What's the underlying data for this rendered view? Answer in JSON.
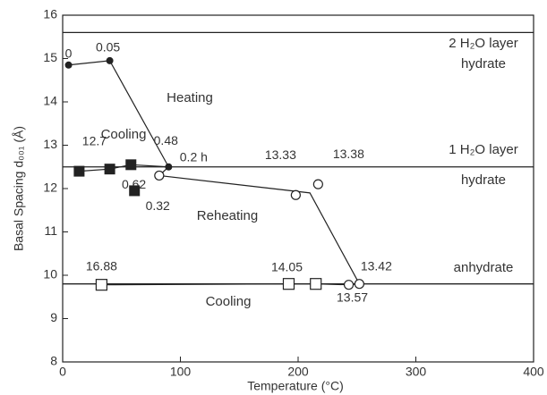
{
  "chart_data": {
    "type": "scatter",
    "xlabel": "Temperature (°C)",
    "ylabel": "Basal Spacing d₀₀₁ (Å)",
    "xlim": [
      0,
      400
    ],
    "xticks": [
      0,
      100,
      200,
      300,
      400
    ],
    "ylim": [
      8,
      16
    ],
    "yticks": [
      8,
      9,
      10,
      11,
      12,
      13,
      14,
      15,
      16
    ],
    "hlines": [
      15.6,
      12.5,
      9.8
    ],
    "color": "#222222",
    "series": [
      {
        "marker": "filled-circle",
        "x": [
          5,
          40,
          90
        ],
        "values": [
          14.85,
          14.95,
          12.5
        ],
        "labels": [
          "0",
          "0.05",
          "0.2 h"
        ]
      },
      {
        "marker": "filled-square",
        "x": [
          14,
          40,
          58,
          61
        ],
        "values": [
          12.4,
          12.45,
          12.55,
          11.95
        ],
        "labels": [
          "12.7",
          "0.62",
          "0.48",
          "0.32"
        ]
      },
      {
        "marker": "open-circle",
        "x": [
          82,
          198,
          217,
          243,
          252
        ],
        "values": [
          12.3,
          11.85,
          12.1,
          9.78,
          9.8
        ],
        "labels": [
          null,
          "13.33",
          "13.38",
          "13.57",
          "13.42"
        ]
      },
      {
        "marker": "open-square",
        "x": [
          33,
          192,
          215
        ],
        "values": [
          9.78,
          9.8,
          9.8
        ],
        "labels": [
          "16.88",
          "14.05",
          null
        ]
      }
    ],
    "lines": [
      {
        "x": [
          5,
          40,
          90
        ],
        "values": [
          14.85,
          14.95,
          12.5
        ]
      },
      {
        "x": [
          90,
          58,
          40,
          14
        ],
        "values": [
          12.5,
          12.55,
          12.45,
          12.4
        ]
      },
      {
        "x": [
          90,
          82,
          210,
          252
        ],
        "values": [
          12.5,
          12.3,
          11.9,
          9.8
        ]
      },
      {
        "x": [
          252,
          243,
          215,
          192,
          33
        ],
        "values": [
          9.8,
          9.78,
          9.8,
          9.8,
          9.78
        ]
      }
    ],
    "annotations": [
      "2 H₂O layer",
      "hydrate",
      "Heating",
      "Cooling",
      "1 H₂O layer",
      "hydrate",
      "Reheating",
      "anhydrate",
      "Cooling"
    ]
  }
}
